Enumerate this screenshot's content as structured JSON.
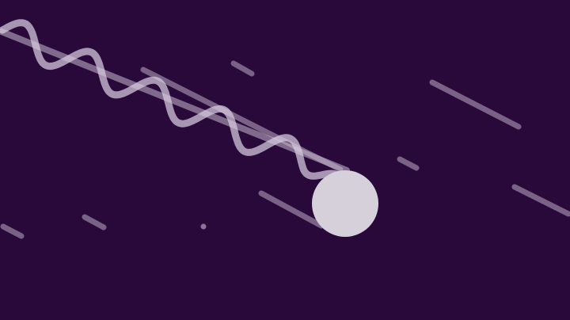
{
  "colors": {
    "background": "#29083a",
    "streak": "#c9bccf",
    "wave": "#d8cde0",
    "orb": "#d6d0db"
  },
  "icons": {
    "orb": "orb-icon",
    "wave": "sine-wave-icon"
  }
}
